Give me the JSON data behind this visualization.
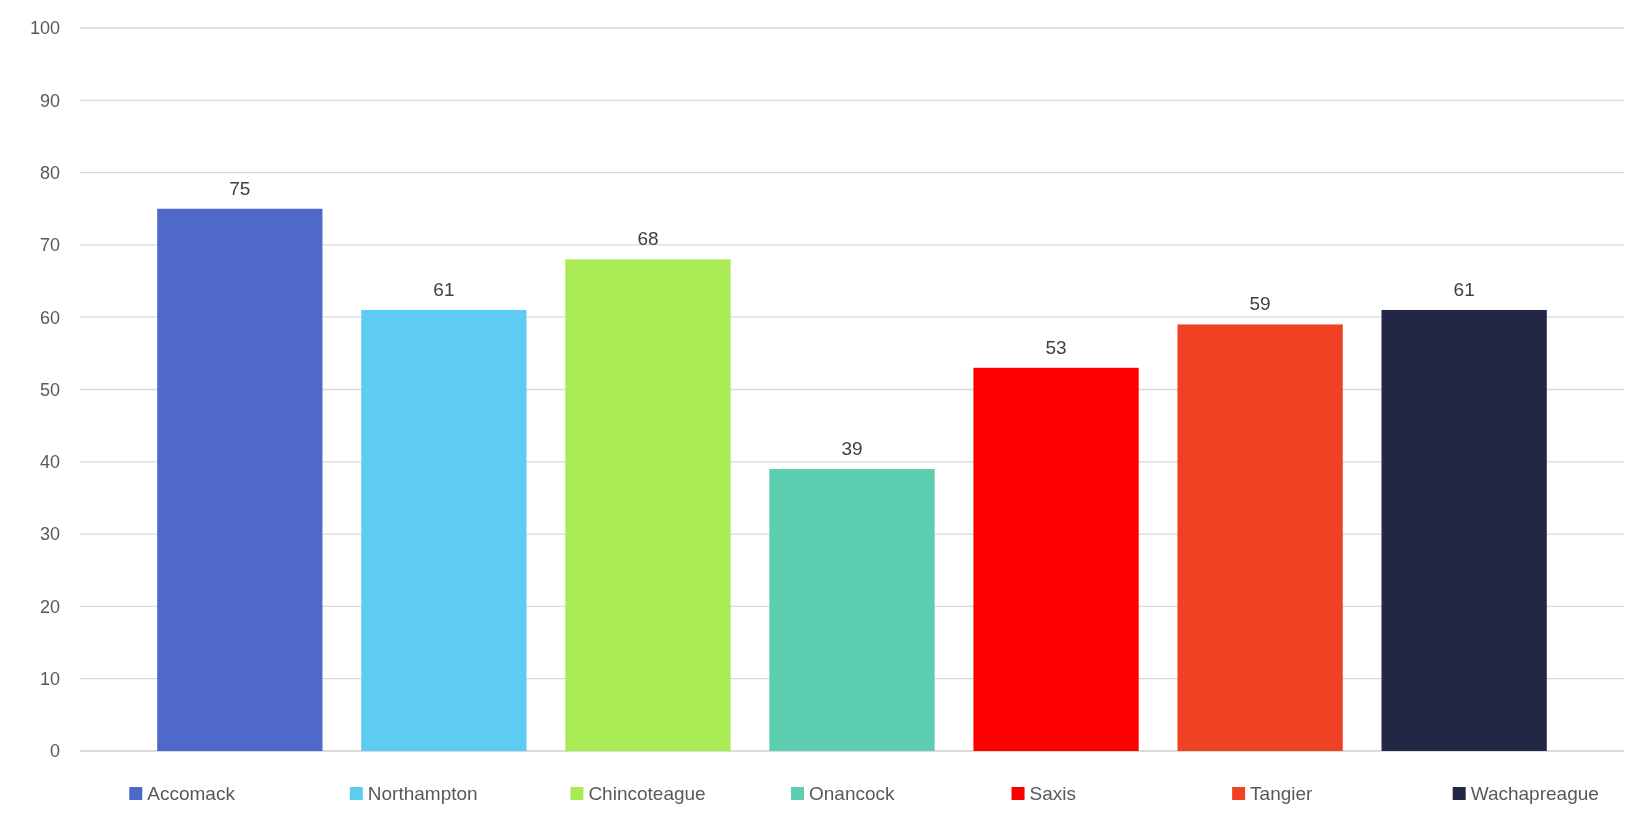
{
  "chart_data": {
    "type": "bar",
    "categories": [
      null
    ],
    "series": [
      {
        "name": "Accomack",
        "color": "#4f69c9",
        "values": [
          75
        ]
      },
      {
        "name": "Northampton",
        "color": "#5ecbf2",
        "values": [
          61
        ]
      },
      {
        "name": "Chincoteague",
        "color": "#a9eb54",
        "values": [
          68
        ]
      },
      {
        "name": "Onancock",
        "color": "#5dcfb0",
        "values": [
          39
        ]
      },
      {
        "name": "Saxis",
        "color": "#fe0000",
        "values": [
          53
        ]
      },
      {
        "name": "Tangier",
        "color": "#ef4224",
        "values": [
          59
        ]
      },
      {
        "name": "Wachapreague",
        "color": "#232645",
        "values": [
          61
        ]
      }
    ],
    "ylim": [
      0,
      100
    ],
    "yticks": [
      0,
      10,
      20,
      30,
      40,
      50,
      60,
      70,
      80,
      90,
      100
    ],
    "grid": "y",
    "legend": "bottom",
    "data_labels": true
  }
}
